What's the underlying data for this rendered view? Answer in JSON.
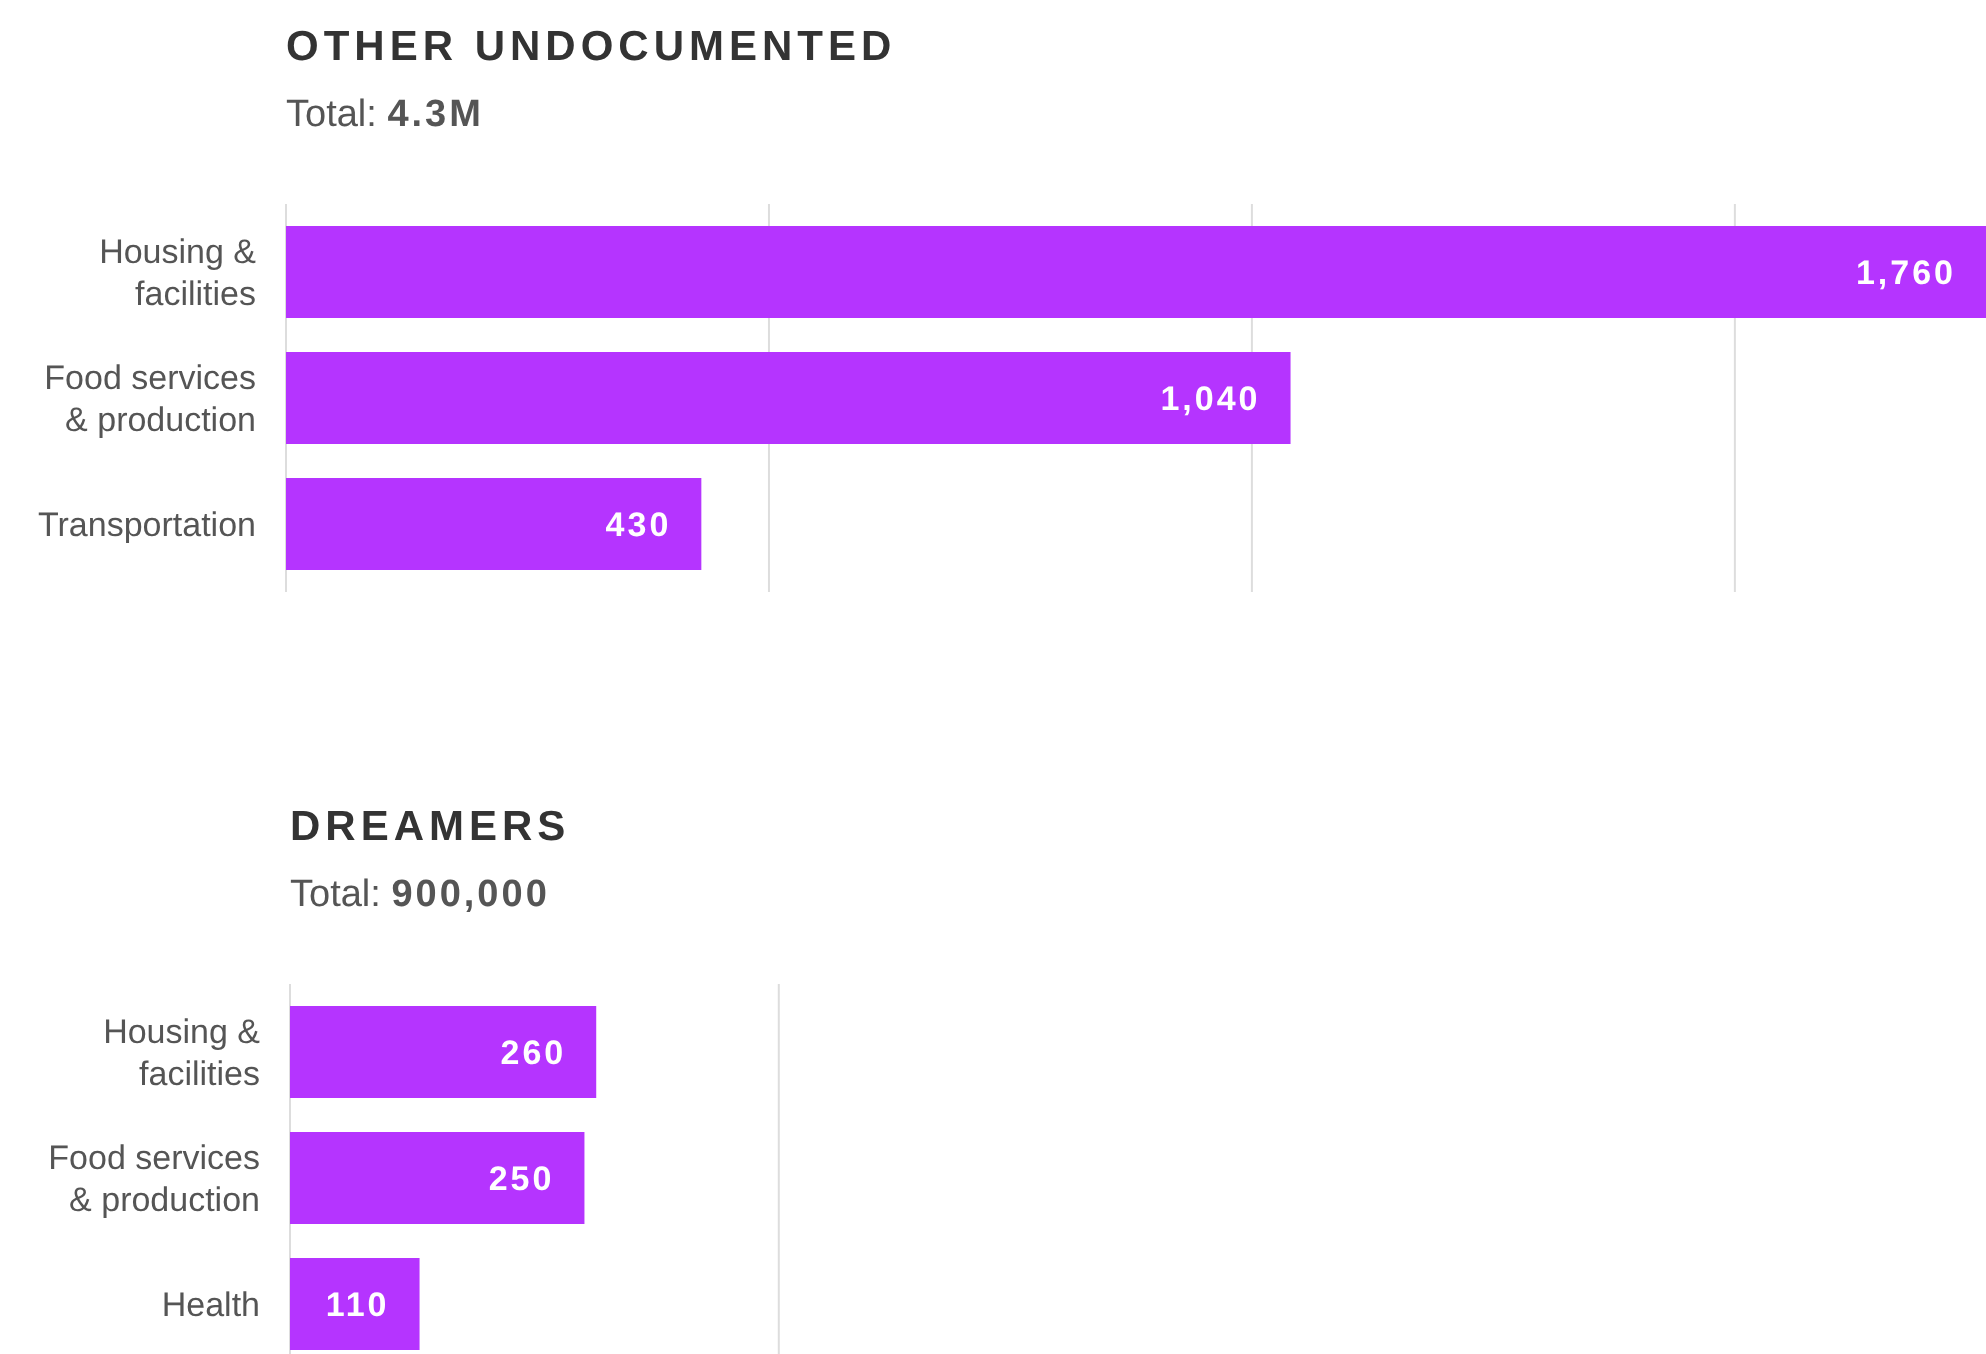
{
  "chart_data": [
    {
      "type": "bar",
      "orientation": "horizontal",
      "title": "OTHER UNDOCUMENTED",
      "subtitle": "Total: 4.3M",
      "categories": [
        "Housing & facilities",
        "Food services & production",
        "Transportation"
      ],
      "values": [
        1760,
        1040,
        430
      ],
      "value_labels": [
        "1,760",
        "1,040",
        "430"
      ],
      "color": "#b534ff",
      "xlim": [
        0,
        1760
      ],
      "xticks": [
        {
          "value": 0,
          "label": null
        },
        {
          "value": 500,
          "label": null
        },
        {
          "value": 1000,
          "label": null
        },
        {
          "value": 1500,
          "label": null
        }
      ],
      "grid": "x",
      "tick_labels": "y"
    },
    {
      "type": "bar",
      "orientation": "horizontal",
      "title": "DREAMERS",
      "subtitle": "Total: 900,000",
      "categories": [
        "Housing & facilities",
        "Food services & production",
        "Health"
      ],
      "values": [
        260,
        250,
        110
      ],
      "value_labels": [
        "260",
        "250",
        "110"
      ],
      "color": "#b534ff",
      "xlim": [
        0,
        1440
      ],
      "xticks": [
        {
          "value": 0,
          "label": null
        },
        {
          "value": 415,
          "label": null
        }
      ],
      "grid": "x",
      "tick_labels": "y"
    }
  ]
}
